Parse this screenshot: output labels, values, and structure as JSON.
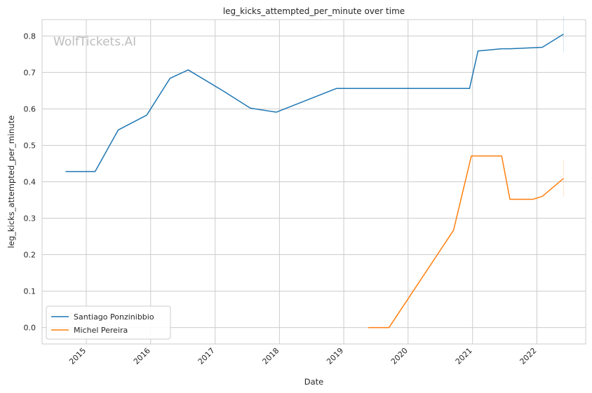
{
  "watermark": "WolfTickets.AI",
  "chart_data": {
    "type": "line",
    "title": "leg_kicks_attempted_per_minute over time",
    "xlabel": "Date",
    "ylabel": "leg_kicks_attempted_per_minute",
    "xlim": [
      "2014-04-25",
      "2022-10-05"
    ],
    "ylim": [
      -0.045,
      0.845
    ],
    "x_ticks": [
      "2015",
      "2016",
      "2017",
      "2018",
      "2019",
      "2020",
      "2021",
      "2022"
    ],
    "y_ticks": [
      "0.0",
      "0.1",
      "0.2",
      "0.3",
      "0.4",
      "0.5",
      "0.6",
      "0.7",
      "0.8"
    ],
    "grid": true,
    "legend_position": "lower-left",
    "series": [
      {
        "name": "Santiago Ponzinibbio",
        "color": "#1f77b4",
        "points": [
          [
            "2014-09-05",
            0.428
          ],
          [
            "2015-02-20",
            0.428
          ],
          [
            "2015-07-01",
            0.542
          ],
          [
            "2015-12-10",
            0.583
          ],
          [
            "2016-04-20",
            0.684
          ],
          [
            "2016-08-01",
            0.707
          ],
          [
            "2017-02-20",
            0.648
          ],
          [
            "2017-07-20",
            0.602
          ],
          [
            "2017-12-15",
            0.591
          ],
          [
            "2018-11-20",
            0.656
          ],
          [
            "2020-12-15",
            0.656
          ],
          [
            "2021-02-01",
            0.759
          ],
          [
            "2021-06-15",
            0.765
          ],
          [
            "2021-08-01",
            0.765
          ],
          [
            "2022-02-01",
            0.769
          ],
          [
            "2022-06-01",
            0.805
          ]
        ]
      },
      {
        "name": "Michel Pereira",
        "color": "#ff7f0e",
        "points": [
          [
            "2019-05-20",
            0.0
          ],
          [
            "2019-09-15",
            0.0
          ],
          [
            "2020-09-15",
            0.267
          ],
          [
            "2020-12-25",
            0.471
          ],
          [
            "2021-06-15",
            0.471
          ],
          [
            "2021-08-01",
            0.352
          ],
          [
            "2021-12-10",
            0.352
          ],
          [
            "2022-02-01",
            0.36
          ],
          [
            "2022-06-01",
            0.409
          ]
        ]
      }
    ]
  }
}
